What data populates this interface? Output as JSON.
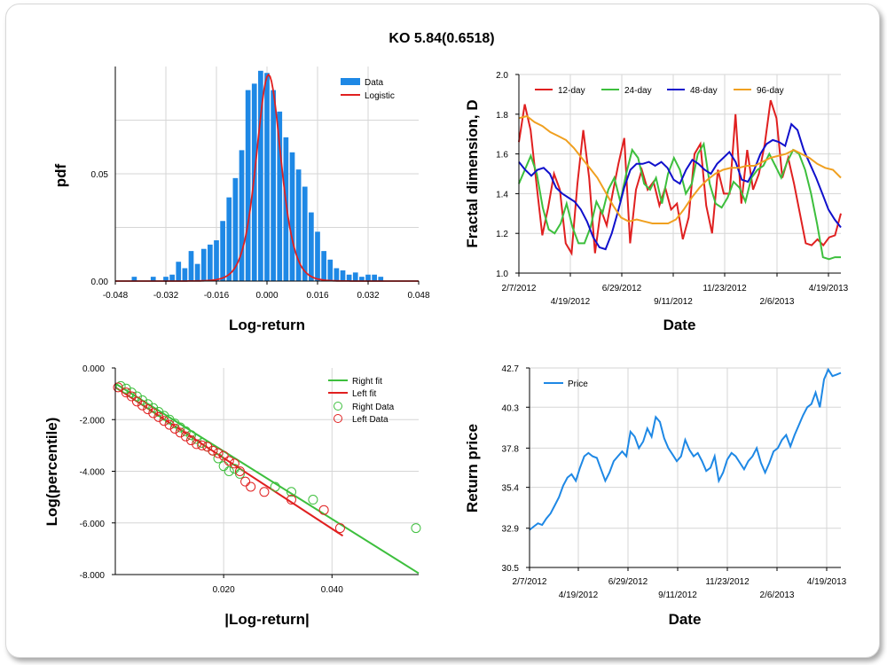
{
  "title": "KO  5.84(0.6518)",
  "chart_data": [
    {
      "type": "bar",
      "panel": "histogram",
      "xlabel": "Log-return",
      "ylabel": "pdf",
      "xlim": [
        -0.048,
        0.048
      ],
      "ylim": [
        0,
        0.1
      ],
      "xticks": [
        "-0.048",
        "-0.032",
        "-0.016",
        "0.000",
        "0.016",
        "0.032",
        "0.048"
      ],
      "yticks": [
        "0.00",
        "0.05"
      ],
      "legend": "top-right",
      "series": [
        {
          "name": "Data",
          "color": "#1e88e5",
          "x": [
            -0.042,
            -0.036,
            -0.032,
            -0.03,
            -0.028,
            -0.026,
            -0.024,
            -0.022,
            -0.02,
            -0.018,
            -0.016,
            -0.014,
            -0.012,
            -0.01,
            -0.008,
            -0.006,
            -0.004,
            -0.002,
            0.0,
            0.002,
            0.004,
            0.006,
            0.008,
            0.01,
            0.012,
            0.014,
            0.016,
            0.018,
            0.02,
            0.022,
            0.024,
            0.026,
            0.028,
            0.03,
            0.032,
            0.034,
            0.036
          ],
          "values": [
            0.002,
            0.002,
            0.002,
            0.003,
            0.009,
            0.006,
            0.014,
            0.008,
            0.015,
            0.017,
            0.019,
            0.028,
            0.039,
            0.048,
            0.061,
            0.089,
            0.092,
            0.098,
            0.097,
            0.089,
            0.079,
            0.067,
            0.06,
            0.052,
            0.044,
            0.032,
            0.023,
            0.014,
            0.01,
            0.006,
            0.005,
            0.003,
            0.004,
            0.002,
            0.003,
            0.003,
            0.002
          ]
        },
        {
          "name": "Logistic",
          "color": "#e02020",
          "mu": 0.0005,
          "s": 0.0026
        }
      ]
    },
    {
      "type": "line",
      "panel": "fractal",
      "xlabel": "Date",
      "ylabel": "Fractal dimension, D",
      "ylim": [
        1.0,
        2.0
      ],
      "yticks": [
        "1.0",
        "1.2",
        "1.4",
        "1.6",
        "1.8",
        "2.0"
      ],
      "xticks_top": [
        "2/7/2012",
        "6/29/2012",
        "11/23/2012",
        "4/19/2013"
      ],
      "xticks_bottom": [
        "4/19/2012",
        "9/11/2012",
        "2/6/2013"
      ],
      "legend": "top",
      "series": [
        {
          "name": "12-day",
          "color": "#e02020",
          "values": [
            1.66,
            1.85,
            1.72,
            1.45,
            1.19,
            1.33,
            1.5,
            1.42,
            1.15,
            1.1,
            1.45,
            1.72,
            1.48,
            1.1,
            1.32,
            1.24,
            1.4,
            1.55,
            1.68,
            1.15,
            1.42,
            1.52,
            1.42,
            1.46,
            1.34,
            1.43,
            1.32,
            1.35,
            1.17,
            1.28,
            1.6,
            1.65,
            1.34,
            1.2,
            1.52,
            1.4,
            1.4,
            1.8,
            1.35,
            1.62,
            1.42,
            1.5,
            1.65,
            1.87,
            1.78,
            1.48,
            1.58,
            1.45,
            1.3,
            1.15,
            1.14,
            1.17,
            1.14,
            1.18,
            1.19,
            1.3
          ]
        },
        {
          "name": "24-day",
          "color": "#3dbf3d",
          "values": [
            1.45,
            1.52,
            1.59,
            1.5,
            1.33,
            1.22,
            1.2,
            1.25,
            1.35,
            1.23,
            1.15,
            1.15,
            1.23,
            1.36,
            1.3,
            1.42,
            1.48,
            1.36,
            1.5,
            1.62,
            1.58,
            1.45,
            1.42,
            1.48,
            1.35,
            1.5,
            1.58,
            1.52,
            1.4,
            1.45,
            1.6,
            1.65,
            1.45,
            1.35,
            1.33,
            1.38,
            1.46,
            1.43,
            1.36,
            1.48,
            1.52,
            1.54,
            1.6,
            1.54,
            1.48,
            1.56,
            1.62,
            1.6,
            1.52,
            1.4,
            1.25,
            1.08,
            1.07,
            1.08,
            1.08
          ]
        },
        {
          "name": "48-day",
          "color": "#1010cc",
          "values": [
            1.56,
            1.52,
            1.49,
            1.52,
            1.53,
            1.5,
            1.43,
            1.4,
            1.38,
            1.36,
            1.32,
            1.26,
            1.18,
            1.13,
            1.12,
            1.2,
            1.31,
            1.43,
            1.52,
            1.55,
            1.55,
            1.56,
            1.54,
            1.56,
            1.53,
            1.47,
            1.45,
            1.52,
            1.57,
            1.55,
            1.52,
            1.5,
            1.55,
            1.58,
            1.61,
            1.56,
            1.47,
            1.46,
            1.52,
            1.6,
            1.65,
            1.67,
            1.66,
            1.64,
            1.75,
            1.72,
            1.62,
            1.55,
            1.48,
            1.4,
            1.32,
            1.27,
            1.23
          ]
        },
        {
          "name": "96-day",
          "color": "#f0a020",
          "values": [
            1.78,
            1.79,
            1.76,
            1.74,
            1.71,
            1.69,
            1.67,
            1.63,
            1.58,
            1.53,
            1.48,
            1.41,
            1.34,
            1.28,
            1.26,
            1.27,
            1.26,
            1.25,
            1.25,
            1.25,
            1.27,
            1.32,
            1.38,
            1.43,
            1.47,
            1.5,
            1.52,
            1.53,
            1.53,
            1.54,
            1.54,
            1.56,
            1.58,
            1.59,
            1.6,
            1.62,
            1.6,
            1.58,
            1.55,
            1.53,
            1.52,
            1.48
          ]
        }
      ]
    },
    {
      "type": "scatter",
      "panel": "tail",
      "xlabel": "|Log-return|",
      "ylabel": "Log(percentile)",
      "xlim": [
        0,
        0.056
      ],
      "ylim": [
        -8.0,
        0.0
      ],
      "xticks": [
        "0.020",
        "0.040"
      ],
      "yticks": [
        "0.000",
        "-2.000",
        "-4.000",
        "-6.000",
        "-8.000"
      ],
      "legend": "top-right",
      "series": [
        {
          "name": "Right fit",
          "color": "#3dbf3d",
          "kind": "line",
          "x": [
            0.0,
            0.056
          ],
          "y": [
            -0.6,
            -7.95
          ]
        },
        {
          "name": "Left fit",
          "color": "#e02020",
          "kind": "line",
          "x": [
            0.0,
            0.042
          ],
          "y": [
            -0.75,
            -6.5
          ]
        },
        {
          "name": "Right Data",
          "color": "#3dbf3d",
          "kind": "points",
          "x": [
            0.001,
            0.002,
            0.003,
            0.004,
            0.005,
            0.006,
            0.007,
            0.008,
            0.009,
            0.01,
            0.011,
            0.012,
            0.013,
            0.014,
            0.015,
            0.016,
            0.017,
            0.018,
            0.019,
            0.02,
            0.021,
            0.022,
            0.023,
            0.0295,
            0.0325,
            0.0365,
            0.0555
          ],
          "y": [
            -0.7,
            -0.8,
            -0.95,
            -1.1,
            -1.25,
            -1.4,
            -1.55,
            -1.7,
            -1.85,
            -2.0,
            -2.15,
            -2.3,
            -2.45,
            -2.6,
            -2.75,
            -2.9,
            -3.05,
            -3.2,
            -3.5,
            -3.8,
            -4.0,
            -3.9,
            -4.1,
            -4.6,
            -4.8,
            -5.1,
            -6.2
          ]
        },
        {
          "name": "Left Data",
          "color": "#e02020",
          "kind": "points",
          "x": [
            0.0005,
            0.002,
            0.003,
            0.004,
            0.005,
            0.006,
            0.007,
            0.008,
            0.009,
            0.01,
            0.011,
            0.012,
            0.013,
            0.014,
            0.015,
            0.016,
            0.017,
            0.018,
            0.019,
            0.02,
            0.021,
            0.022,
            0.023,
            0.024,
            0.025,
            0.0275,
            0.0325,
            0.0385,
            0.0415
          ],
          "y": [
            -0.75,
            -0.95,
            -1.1,
            -1.3,
            -1.45,
            -1.6,
            -1.75,
            -1.9,
            -2.05,
            -2.2,
            -2.35,
            -2.5,
            -2.65,
            -2.8,
            -2.95,
            -3.0,
            -3.05,
            -3.2,
            -3.3,
            -3.4,
            -3.6,
            -3.7,
            -4.0,
            -4.4,
            -4.6,
            -4.8,
            -5.1,
            -5.5,
            -6.2
          ]
        }
      ]
    },
    {
      "type": "line",
      "panel": "price",
      "xlabel": "Date",
      "ylabel": "Return price",
      "ylim": [
        30.5,
        42.7
      ],
      "yticks": [
        "42.7",
        "40.3",
        "37.8",
        "35.4",
        "32.9",
        "30.5"
      ],
      "xticks_top": [
        "2/7/2012",
        "6/29/2012",
        "11/23/2012",
        "4/19/2013"
      ],
      "xticks_bottom": [
        "4/19/2012",
        "9/11/2012",
        "2/6/2013"
      ],
      "legend": "top-left",
      "series": [
        {
          "name": "Price",
          "color": "#1e88e5",
          "values": [
            32.8,
            33.0,
            33.2,
            33.1,
            33.5,
            33.8,
            34.3,
            34.8,
            35.5,
            36.0,
            36.2,
            35.8,
            36.6,
            37.3,
            37.5,
            37.3,
            37.2,
            36.5,
            35.8,
            36.3,
            37.0,
            37.3,
            37.6,
            37.3,
            38.8,
            38.5,
            37.8,
            38.2,
            39.0,
            38.5,
            39.7,
            39.4,
            38.4,
            37.8,
            37.4,
            37.0,
            37.3,
            38.3,
            37.7,
            37.3,
            37.5,
            37.0,
            36.4,
            36.6,
            37.3,
            35.8,
            36.3,
            37.1,
            37.5,
            37.3,
            36.9,
            36.5,
            37.0,
            37.3,
            37.8,
            36.9,
            36.3,
            36.9,
            37.6,
            37.8,
            38.3,
            38.6,
            37.9,
            38.6,
            39.2,
            39.8,
            40.3,
            40.5,
            41.2,
            40.3,
            42.0,
            42.6,
            42.2,
            42.3,
            42.4
          ]
        }
      ]
    }
  ]
}
